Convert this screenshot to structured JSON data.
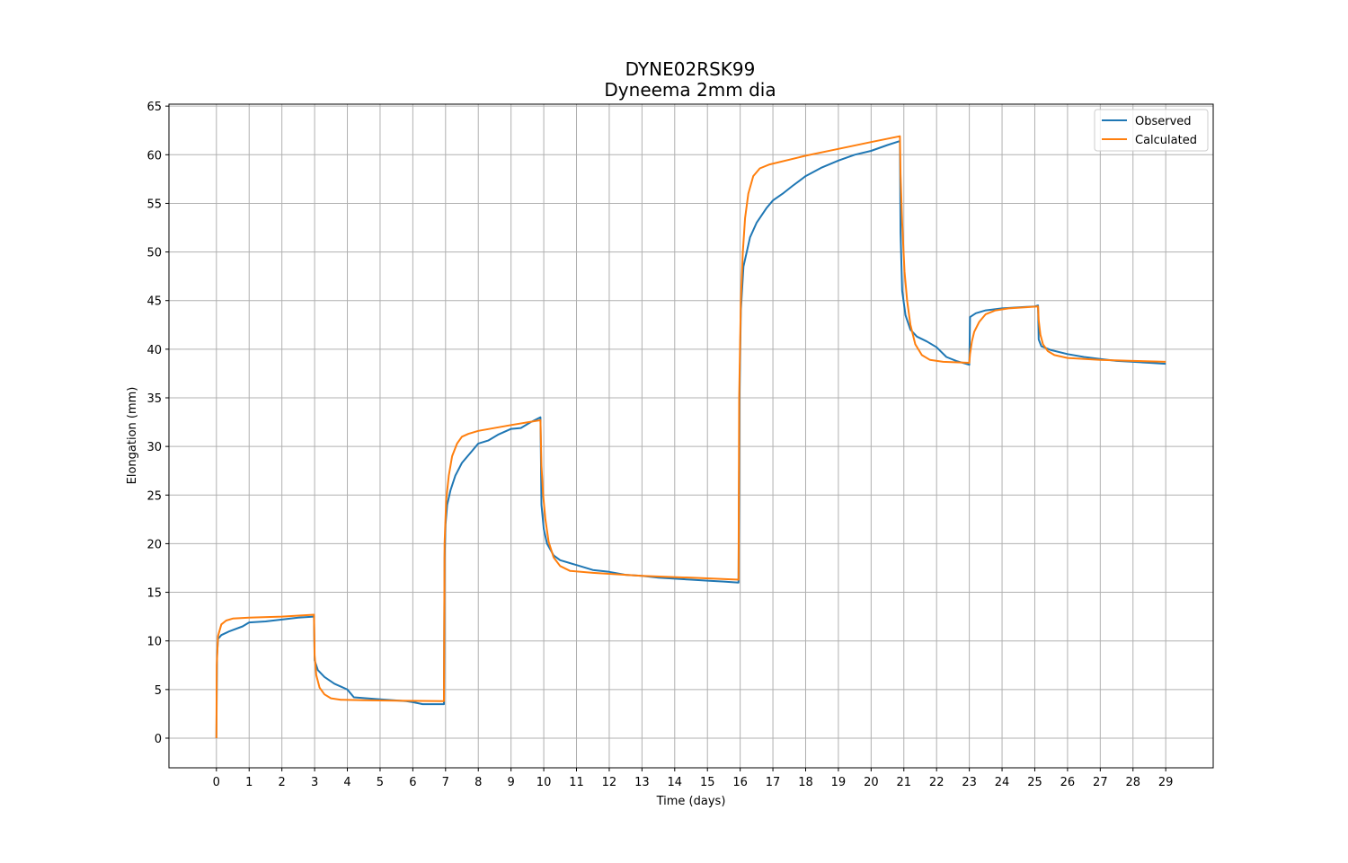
{
  "chart_data": {
    "type": "line",
    "title": "DYNE02RSK99",
    "subtitle": "Dyneema 2mm dia",
    "xlabel": "Time (days)",
    "ylabel": "Elongation (mm)",
    "xlim": [
      -1.45,
      30.45
    ],
    "ylim": [
      -3.05,
      65.2
    ],
    "xticks": [
      0,
      1,
      2,
      3,
      4,
      5,
      6,
      7,
      8,
      9,
      10,
      11,
      12,
      13,
      14,
      15,
      16,
      17,
      18,
      19,
      20,
      21,
      22,
      23,
      24,
      25,
      26,
      27,
      28,
      29
    ],
    "yticks": [
      0,
      5,
      10,
      15,
      20,
      25,
      30,
      35,
      40,
      45,
      50,
      55,
      60,
      65
    ],
    "grid": true,
    "legend": "top-right",
    "series": [
      {
        "name": "Observed",
        "color": "#1f77b4",
        "points": [
          [
            0,
            0
          ],
          [
            0.02,
            8.5
          ],
          [
            0.05,
            10.2
          ],
          [
            0.15,
            10.6
          ],
          [
            0.4,
            11.0
          ],
          [
            0.8,
            11.5
          ],
          [
            1.0,
            11.9
          ],
          [
            1.5,
            12.0
          ],
          [
            2.0,
            12.2
          ],
          [
            2.5,
            12.4
          ],
          [
            2.98,
            12.5
          ],
          [
            3.0,
            8.0
          ],
          [
            3.1,
            7.0
          ],
          [
            3.3,
            6.3
          ],
          [
            3.6,
            5.6
          ],
          [
            4.0,
            5.0
          ],
          [
            4.2,
            4.2
          ],
          [
            4.6,
            4.1
          ],
          [
            5.0,
            4.0
          ],
          [
            5.4,
            3.9
          ],
          [
            5.8,
            3.8
          ],
          [
            6.0,
            3.7
          ],
          [
            6.3,
            3.5
          ],
          [
            6.6,
            3.5
          ],
          [
            6.95,
            3.5
          ],
          [
            6.97,
            18.5
          ],
          [
            7.0,
            22.0
          ],
          [
            7.05,
            24.0
          ],
          [
            7.15,
            25.5
          ],
          [
            7.3,
            27.0
          ],
          [
            7.5,
            28.3
          ],
          [
            7.8,
            29.5
          ],
          [
            8.0,
            30.3
          ],
          [
            8.3,
            30.6
          ],
          [
            8.6,
            31.2
          ],
          [
            9.0,
            31.8
          ],
          [
            9.3,
            31.9
          ],
          [
            9.6,
            32.5
          ],
          [
            9.9,
            33.0
          ],
          [
            9.93,
            24.0
          ],
          [
            10.0,
            21.5
          ],
          [
            10.1,
            20.0
          ],
          [
            10.3,
            18.8
          ],
          [
            10.5,
            18.3
          ],
          [
            11.0,
            17.8
          ],
          [
            11.5,
            17.3
          ],
          [
            12.0,
            17.1
          ],
          [
            12.5,
            16.8
          ],
          [
            13.0,
            16.7
          ],
          [
            13.5,
            16.5
          ],
          [
            14.0,
            16.4
          ],
          [
            14.5,
            16.3
          ],
          [
            15.0,
            16.2
          ],
          [
            15.5,
            16.1
          ],
          [
            15.95,
            16.0
          ],
          [
            15.98,
            35.0
          ],
          [
            16.02,
            44.0
          ],
          [
            16.1,
            48.5
          ],
          [
            16.3,
            51.5
          ],
          [
            16.5,
            53.0
          ],
          [
            16.8,
            54.5
          ],
          [
            17.0,
            55.3
          ],
          [
            17.3,
            56.0
          ],
          [
            17.6,
            56.8
          ],
          [
            18.0,
            57.8
          ],
          [
            18.5,
            58.7
          ],
          [
            19.0,
            59.4
          ],
          [
            19.5,
            60.0
          ],
          [
            20.0,
            60.4
          ],
          [
            20.5,
            61.0
          ],
          [
            20.88,
            61.4
          ],
          [
            20.9,
            52.0
          ],
          [
            20.95,
            46.0
          ],
          [
            21.05,
            43.5
          ],
          [
            21.2,
            42.0
          ],
          [
            21.4,
            41.3
          ],
          [
            21.7,
            40.8
          ],
          [
            22.0,
            40.2
          ],
          [
            22.3,
            39.2
          ],
          [
            22.6,
            38.8
          ],
          [
            23.0,
            38.4
          ],
          [
            23.02,
            43.3
          ],
          [
            23.2,
            43.7
          ],
          [
            23.5,
            44.0
          ],
          [
            24.0,
            44.2
          ],
          [
            24.5,
            44.3
          ],
          [
            25.0,
            44.4
          ],
          [
            25.1,
            44.5
          ],
          [
            25.12,
            41.0
          ],
          [
            25.2,
            40.3
          ],
          [
            25.5,
            39.9
          ],
          [
            26.0,
            39.5
          ],
          [
            26.5,
            39.2
          ],
          [
            27.0,
            39.0
          ],
          [
            27.5,
            38.8
          ],
          [
            28.0,
            38.7
          ],
          [
            28.5,
            38.6
          ],
          [
            29.0,
            38.5
          ]
        ]
      },
      {
        "name": "Calculated",
        "color": "#ff7f0e",
        "points": [
          [
            0,
            0
          ],
          [
            0.01,
            7.5
          ],
          [
            0.05,
            10.5
          ],
          [
            0.15,
            11.7
          ],
          [
            0.3,
            12.1
          ],
          [
            0.5,
            12.3
          ],
          [
            1.0,
            12.4
          ],
          [
            2.0,
            12.5
          ],
          [
            2.98,
            12.7
          ],
          [
            3.0,
            8.5
          ],
          [
            3.05,
            6.5
          ],
          [
            3.15,
            5.2
          ],
          [
            3.3,
            4.5
          ],
          [
            3.5,
            4.1
          ],
          [
            3.8,
            3.95
          ],
          [
            4.5,
            3.9
          ],
          [
            5.5,
            3.85
          ],
          [
            6.95,
            3.8
          ],
          [
            6.97,
            20.0
          ],
          [
            7.02,
            24.5
          ],
          [
            7.1,
            27.0
          ],
          [
            7.2,
            29.0
          ],
          [
            7.35,
            30.3
          ],
          [
            7.5,
            31.0
          ],
          [
            7.7,
            31.3
          ],
          [
            8.0,
            31.6
          ],
          [
            9.0,
            32.2
          ],
          [
            9.9,
            32.7
          ],
          [
            9.93,
            28.0
          ],
          [
            9.98,
            25.0
          ],
          [
            10.05,
            22.5
          ],
          [
            10.15,
            20.2
          ],
          [
            10.3,
            18.6
          ],
          [
            10.5,
            17.7
          ],
          [
            10.8,
            17.2
          ],
          [
            11.5,
            17.0
          ],
          [
            13.0,
            16.7
          ],
          [
            14.5,
            16.5
          ],
          [
            15.95,
            16.3
          ],
          [
            15.97,
            35.0
          ],
          [
            16.02,
            45.0
          ],
          [
            16.08,
            50.0
          ],
          [
            16.15,
            53.5
          ],
          [
            16.25,
            56.0
          ],
          [
            16.4,
            57.8
          ],
          [
            16.6,
            58.6
          ],
          [
            16.9,
            59.0
          ],
          [
            18.0,
            59.9
          ],
          [
            19.0,
            60.6
          ],
          [
            20.0,
            61.3
          ],
          [
            20.88,
            61.9
          ],
          [
            20.9,
            58.0
          ],
          [
            20.95,
            53.0
          ],
          [
            21.02,
            48.0
          ],
          [
            21.1,
            45.0
          ],
          [
            21.2,
            42.5
          ],
          [
            21.35,
            40.5
          ],
          [
            21.55,
            39.4
          ],
          [
            21.8,
            38.9
          ],
          [
            22.2,
            38.7
          ],
          [
            23.0,
            38.6
          ],
          [
            23.02,
            39.5
          ],
          [
            23.08,
            40.8
          ],
          [
            23.15,
            41.8
          ],
          [
            23.3,
            42.8
          ],
          [
            23.5,
            43.6
          ],
          [
            23.8,
            44.0
          ],
          [
            24.2,
            44.2
          ],
          [
            25.1,
            44.4
          ],
          [
            25.12,
            43.0
          ],
          [
            25.17,
            41.5
          ],
          [
            25.25,
            40.5
          ],
          [
            25.4,
            39.8
          ],
          [
            25.6,
            39.4
          ],
          [
            26.0,
            39.1
          ],
          [
            27.0,
            38.9
          ],
          [
            28.0,
            38.8
          ],
          [
            29.0,
            38.7
          ]
        ]
      }
    ]
  }
}
